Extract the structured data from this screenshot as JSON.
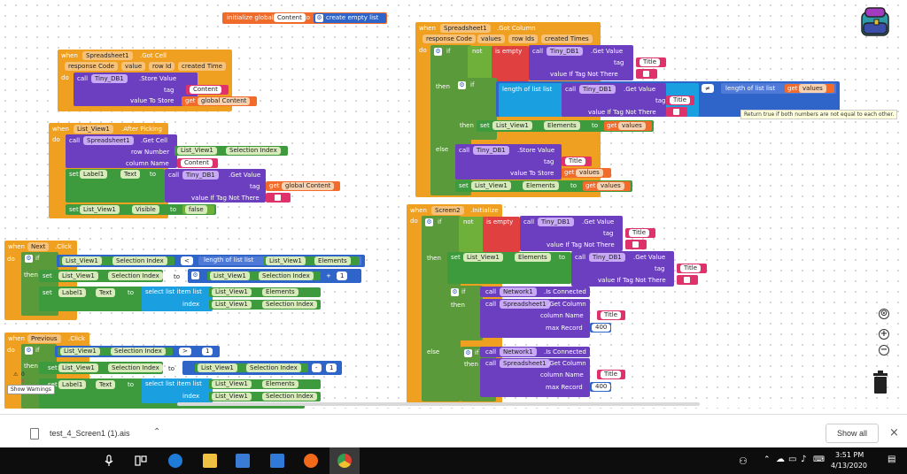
{
  "workspace": {
    "init_block": {
      "prefix": "initialize global",
      "name": "Content",
      "to": "to",
      "value": "create empty list"
    },
    "got_cell": {
      "event": "when",
      "component": "Spreadsheet1",
      "event_name": ".Got Cell",
      "params": [
        "response Code",
        "value",
        "row Id",
        "created Time"
      ],
      "do": "do",
      "call": "call",
      "db": "Tiny_DB1",
      "method": ".Store Value",
      "tag_label": "tag",
      "tag_value": "Content",
      "value_label": "value To Store",
      "get": "get",
      "get_value": "global Content"
    },
    "after_picking": {
      "event": "when",
      "component": "List_View1",
      "event_name": ".After Picking",
      "do": "do",
      "call": "call",
      "sheet": "Spreadsheet1",
      "method": ".Get Cell",
      "row_label": "row Number",
      "row_comp": "List_View1",
      "row_prop": "Selection Index",
      "col_label": "column Name",
      "col_value": "Content",
      "set": "set",
      "label": "Label1",
      "text_prop": "Text",
      "to": "to",
      "db": "Tiny_DB1",
      "getvalue": ".Get Value",
      "tag_label": "tag",
      "get": "get",
      "global_content": "global Content",
      "notthere_label": "value If Tag Not There",
      "visible_comp": "List_View1",
      "visible_prop": "Visible",
      "false": "false"
    },
    "next_click": {
      "event": "when",
      "component": "Next",
      "event_name": ".Click",
      "do": "do",
      "if": "if",
      "then": "then",
      "lv": "List_View1",
      "sel": "Selection Index",
      "op_lt": "<",
      "length": "length of list  list",
      "elements": "Elements",
      "set": "set",
      "to": "to",
      "plus": "+",
      "one": "1",
      "label": "Label1",
      "text": "Text",
      "select": "select list item  list",
      "index": "index"
    },
    "previous_click": {
      "event": "when",
      "component": "Previous",
      "event_name": ".Click",
      "do": "do",
      "if": "if",
      "then": "then",
      "lv": "List_View1",
      "sel": "Selection Index",
      "op_gt": ">",
      "one": "1",
      "set": "set",
      "to": "to",
      "minus": "-",
      "label": "Label1",
      "text": "Text",
      "select": "select list item  list",
      "index": "index",
      "elements": "Elements",
      "warn_a": "0",
      "warn_b": "0",
      "show_warnings": "Show Warnings"
    },
    "got_column": {
      "event": "when",
      "component": "Spreadsheet1",
      "event_name": ".Got Column",
      "params": [
        "response Code",
        "values",
        "row Ids",
        "created Times"
      ],
      "do": "do",
      "if": "if",
      "not": "not",
      "is_empty": "is empty",
      "call": "call",
      "db": "Tiny_DB1",
      "getvalue": ".Get Value",
      "tag_label": "tag",
      "title": "Title",
      "notthere_label": "value If Tag Not There",
      "then": "then",
      "length": "length of list  list",
      "neq": "≠",
      "get": "get",
      "values": "values",
      "set": "set",
      "lv": "List_View1",
      "elements": "Elements",
      "to": "to",
      "else": "else",
      "storevalue": ".Store Value",
      "storelabel": "value To Store",
      "tooltip": "Return true if both numbers are not equal to each other."
    },
    "screen_init": {
      "event": "when",
      "component": "Screen2",
      "event_name": ".Initialize",
      "do": "do",
      "if": "if",
      "not": "not",
      "is_empty": "is empty",
      "call": "call",
      "db": "Tiny_DB1",
      "getvalue": ".Get Value",
      "tag_label": "tag",
      "title": "Title",
      "notthere_label": "value If Tag Not There",
      "then": "then",
      "set": "set",
      "lv": "List_View1",
      "elements": "Elements",
      "to": "to",
      "net": "Network1",
      "connected": ".Is Connected",
      "sheet": "Spreadsheet1",
      "getcol": ".Get Column",
      "col_label": "column Name",
      "max_label": "max Record",
      "max_value": "400",
      "else": "else"
    }
  },
  "downloads_bar": {
    "file_name": "test_4_Screen1 (1).ais",
    "show_all": "Show all",
    "close": "×"
  },
  "taskbar": {
    "time": "3:51 PM",
    "date": "4/13/2020"
  },
  "colors": {
    "event": "#f0a020",
    "procedure": "#6b3fc0",
    "setter": "#3d9a3d",
    "text": "#e04040",
    "list": "#2f64c8",
    "logic": "#6fb03a",
    "taskbar": "#0d0d0d"
  }
}
